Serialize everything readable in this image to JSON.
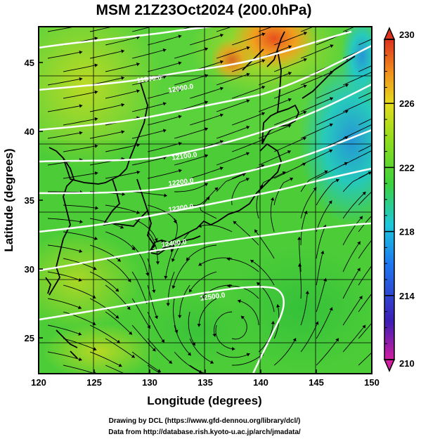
{
  "title": "MSM 21Z23Oct2024 (200.0hPa)",
  "axes": {
    "xlabel": "Longitude (degrees)",
    "ylabel": "Latitude  (degrees)",
    "x_ticks": [
      "120",
      "125",
      "130",
      "135",
      "140",
      "145",
      "150"
    ],
    "y_ticks": [
      "25",
      "30",
      "35",
      "40",
      "45"
    ],
    "xlim": [
      120,
      150
    ],
    "ylim": [
      22.4,
      47.6
    ]
  },
  "colorbar": {
    "ticks": [
      "230",
      "226",
      "222",
      "218",
      "214",
      "210"
    ],
    "range": [
      210,
      230
    ],
    "colors": [
      "#d21ea0",
      "#3c1eb4",
      "#1e78f0",
      "#1ec8dc",
      "#3cd23c",
      "#8cdc1e",
      "#e6dc1e",
      "#f08c1e",
      "#dc321e"
    ]
  },
  "contour_labels": [
    "11900.0",
    "12000.0",
    "12100.0",
    "12200.0",
    "12300.0",
    "12400.0",
    "12500.0"
  ],
  "credits": {
    "line1": "Drawing by DCL (https://www.gfd-dennou.org/library/dcl/)",
    "line2": "Data from http://database.rish.kyoto-u.ac.jp/arch/jmadata/"
  }
}
